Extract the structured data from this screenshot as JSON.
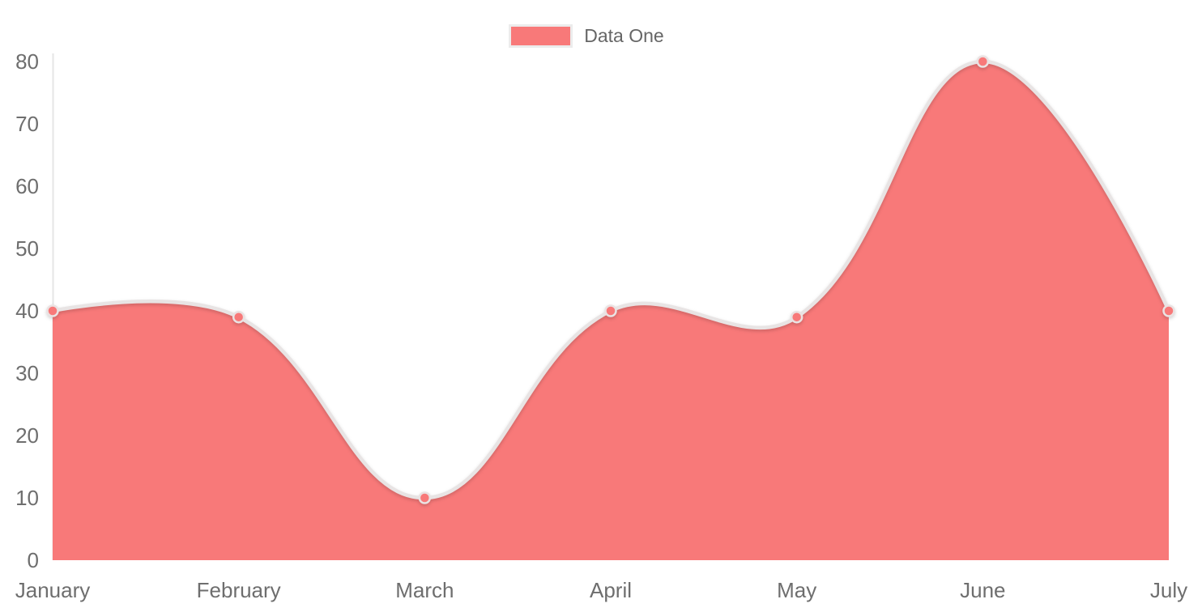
{
  "legend": {
    "label": "Data One",
    "swatch_color": "#f87979",
    "swatch_border_color": "#ececec"
  },
  "chart_data": {
    "type": "area",
    "title": "",
    "categories": [
      "January",
      "February",
      "March",
      "April",
      "May",
      "June",
      "July"
    ],
    "series": [
      {
        "name": "Data One",
        "values": [
          40,
          39,
          10,
          40,
          39,
          80,
          40
        ]
      }
    ],
    "xlabel": "",
    "ylabel": "",
    "ylim": [
      0,
      80
    ],
    "ytick_step": 10,
    "ytick_labels": [
      "0",
      "10",
      "20",
      "30",
      "40",
      "50",
      "60",
      "70",
      "80"
    ],
    "grid": false,
    "legend_position": "top-center",
    "smoothing": "bezier",
    "bezier_tension": 0.4,
    "colors": {
      "area_fill": "#f87979",
      "line_stroke": "#e8e4e4",
      "point_fill": "#f87979",
      "point_stroke": "#eae2e2",
      "axis_line": "#e5e5e5",
      "tick_text": "#6e6e6e",
      "legend_text": "#666666"
    }
  }
}
